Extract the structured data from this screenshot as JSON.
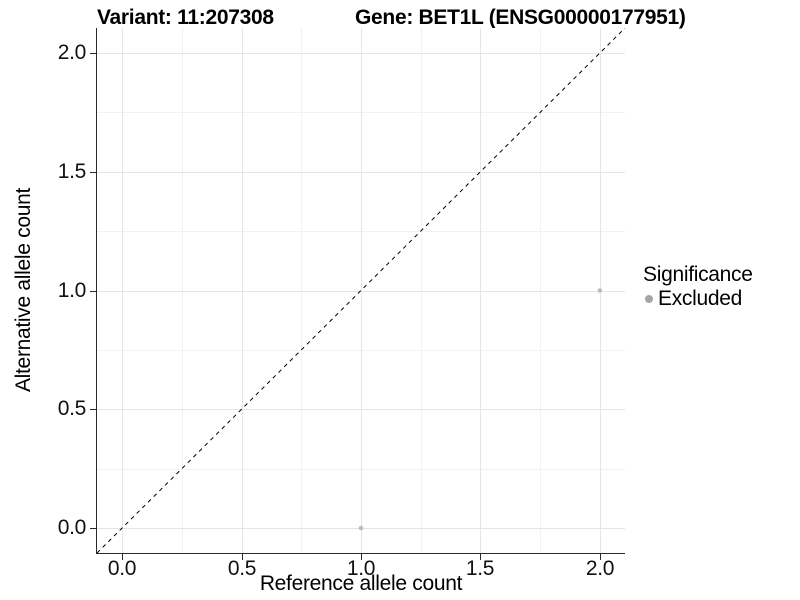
{
  "chart_data": {
    "type": "scatter",
    "title_left": "Variant: 11:207308",
    "title_right": "Gene: BET1L (ENSG00000177951)",
    "xlabel": "Reference allele count",
    "ylabel": "Alternative allele count",
    "xlim": [
      -0.105,
      2.105
    ],
    "ylim": [
      -0.105,
      2.105
    ],
    "xticks": [
      0.0,
      0.5,
      1.0,
      1.5,
      2.0
    ],
    "yticks": [
      0.0,
      0.5,
      1.0,
      1.5,
      2.0
    ],
    "tick_decimals": 1,
    "grid": {
      "show": true,
      "minor_gridlines": true,
      "major_color": "#e5e5e5",
      "minor_color": "#f2f2f2"
    },
    "identity_line": {
      "slope": 1,
      "intercept": 0,
      "style": "dashed",
      "color": "#000000"
    },
    "series": [
      {
        "name": "Excluded",
        "color": "#bdbdbd",
        "point_radius": 2.3,
        "points": [
          {
            "x": 1.0,
            "y": 0.0
          },
          {
            "x": 2.0,
            "y": 1.0
          }
        ]
      }
    ],
    "legend": {
      "title": "Significance",
      "position": "right",
      "items": [
        {
          "label": "Excluded",
          "color": "#a5a5a5"
        }
      ]
    }
  }
}
